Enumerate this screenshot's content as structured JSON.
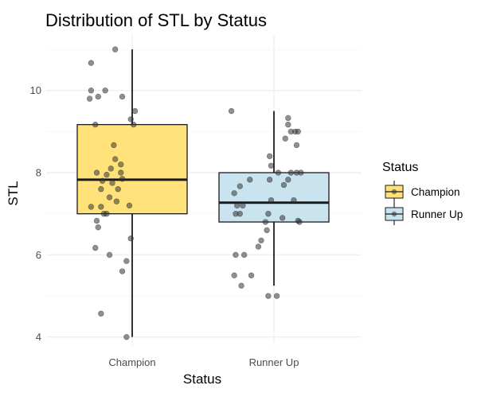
{
  "chart_data": {
    "type": "boxplot",
    "title": "Distribution of STL by Status",
    "xlabel": "Status",
    "ylabel": "STL",
    "categories": [
      "Champion",
      "Runner Up"
    ],
    "y_ticks": [
      4,
      6,
      8,
      10
    ],
    "ylim": [
      3.8,
      11.35
    ],
    "grid": true,
    "legend": {
      "title": "Status",
      "position": "right",
      "entries": [
        "Champion",
        "Runner Up"
      ]
    },
    "colors": {
      "Champion": "#FFE27A",
      "Runner Up": "#C9E4EE",
      "points": "#333333"
    },
    "boxes": [
      {
        "name": "Champion",
        "whisker_low": 4.0,
        "q1": 7.0,
        "median": 7.83,
        "q3": 9.17,
        "whisker_high": 11.0
      },
      {
        "name": "Runner Up",
        "whisker_low": 5.25,
        "q1": 6.8,
        "median": 7.27,
        "q3": 8.0,
        "whisker_high": 9.5
      }
    ],
    "points": [
      [
        {
          "x": 0.71,
          "y": 10.67
        },
        {
          "x": 0.88,
          "y": 11.0
        },
        {
          "x": 0.71,
          "y": 10.0
        },
        {
          "x": 0.81,
          "y": 10.0
        },
        {
          "x": 0.76,
          "y": 9.85
        },
        {
          "x": 0.7,
          "y": 9.8
        },
        {
          "x": 0.93,
          "y": 9.85
        },
        {
          "x": 1.02,
          "y": 9.5
        },
        {
          "x": 0.99,
          "y": 9.3
        },
        {
          "x": 0.74,
          "y": 9.17
        },
        {
          "x": 1.01,
          "y": 9.17
        },
        {
          "x": 0.87,
          "y": 8.67
        },
        {
          "x": 0.88,
          "y": 8.33
        },
        {
          "x": 0.92,
          "y": 8.2
        },
        {
          "x": 0.85,
          "y": 8.1
        },
        {
          "x": 0.92,
          "y": 8.0
        },
        {
          "x": 0.75,
          "y": 8.0
        },
        {
          "x": 0.82,
          "y": 7.95
        },
        {
          "x": 0.93,
          "y": 7.85
        },
        {
          "x": 0.79,
          "y": 7.8
        },
        {
          "x": 0.86,
          "y": 7.75
        },
        {
          "x": 0.78,
          "y": 7.6
        },
        {
          "x": 0.9,
          "y": 7.6
        },
        {
          "x": 0.84,
          "y": 7.4
        },
        {
          "x": 0.89,
          "y": 7.3
        },
        {
          "x": 0.71,
          "y": 7.17
        },
        {
          "x": 0.78,
          "y": 7.17
        },
        {
          "x": 0.98,
          "y": 7.2
        },
        {
          "x": 0.8,
          "y": 7.0
        },
        {
          "x": 0.82,
          "y": 7.0
        },
        {
          "x": 0.75,
          "y": 6.83
        },
        {
          "x": 0.76,
          "y": 6.67
        },
        {
          "x": 0.99,
          "y": 6.4
        },
        {
          "x": 0.74,
          "y": 6.17
        },
        {
          "x": 0.84,
          "y": 6.0
        },
        {
          "x": 0.96,
          "y": 5.85
        },
        {
          "x": 0.93,
          "y": 5.6
        },
        {
          "x": 0.78,
          "y": 4.57
        },
        {
          "x": 0.96,
          "y": 4.0
        }
      ],
      [
        {
          "x": 1.7,
          "y": 9.5
        },
        {
          "x": 2.1,
          "y": 9.33
        },
        {
          "x": 2.1,
          "y": 9.17
        },
        {
          "x": 2.15,
          "y": 9.0
        },
        {
          "x": 2.17,
          "y": 9.0
        },
        {
          "x": 2.12,
          "y": 9.0
        },
        {
          "x": 2.08,
          "y": 8.83
        },
        {
          "x": 2.16,
          "y": 8.67
        },
        {
          "x": 1.97,
          "y": 8.4
        },
        {
          "x": 1.98,
          "y": 8.17
        },
        {
          "x": 2.03,
          "y": 8.0
        },
        {
          "x": 2.12,
          "y": 8.0
        },
        {
          "x": 2.16,
          "y": 8.0
        },
        {
          "x": 2.19,
          "y": 8.0
        },
        {
          "x": 1.97,
          "y": 7.83
        },
        {
          "x": 2.1,
          "y": 7.83
        },
        {
          "x": 1.83,
          "y": 7.83
        },
        {
          "x": 2.07,
          "y": 7.7
        },
        {
          "x": 1.76,
          "y": 7.67
        },
        {
          "x": 1.72,
          "y": 7.5
        },
        {
          "x": 1.98,
          "y": 7.33
        },
        {
          "x": 2.14,
          "y": 7.33
        },
        {
          "x": 1.74,
          "y": 7.2
        },
        {
          "x": 1.78,
          "y": 7.2
        },
        {
          "x": 1.76,
          "y": 7.0
        },
        {
          "x": 1.73,
          "y": 7.0
        },
        {
          "x": 1.96,
          "y": 7.0
        },
        {
          "x": 2.06,
          "y": 6.9
        },
        {
          "x": 2.17,
          "y": 6.83
        },
        {
          "x": 2.18,
          "y": 6.8
        },
        {
          "x": 1.94,
          "y": 6.8
        },
        {
          "x": 1.95,
          "y": 6.6
        },
        {
          "x": 1.91,
          "y": 6.35
        },
        {
          "x": 1.89,
          "y": 6.2
        },
        {
          "x": 1.73,
          "y": 6.0
        },
        {
          "x": 1.79,
          "y": 6.0
        },
        {
          "x": 1.72,
          "y": 5.5
        },
        {
          "x": 1.84,
          "y": 5.5
        },
        {
          "x": 1.77,
          "y": 5.25
        },
        {
          "x": 1.96,
          "y": 5.0
        },
        {
          "x": 2.02,
          "y": 5.0
        }
      ]
    ]
  }
}
